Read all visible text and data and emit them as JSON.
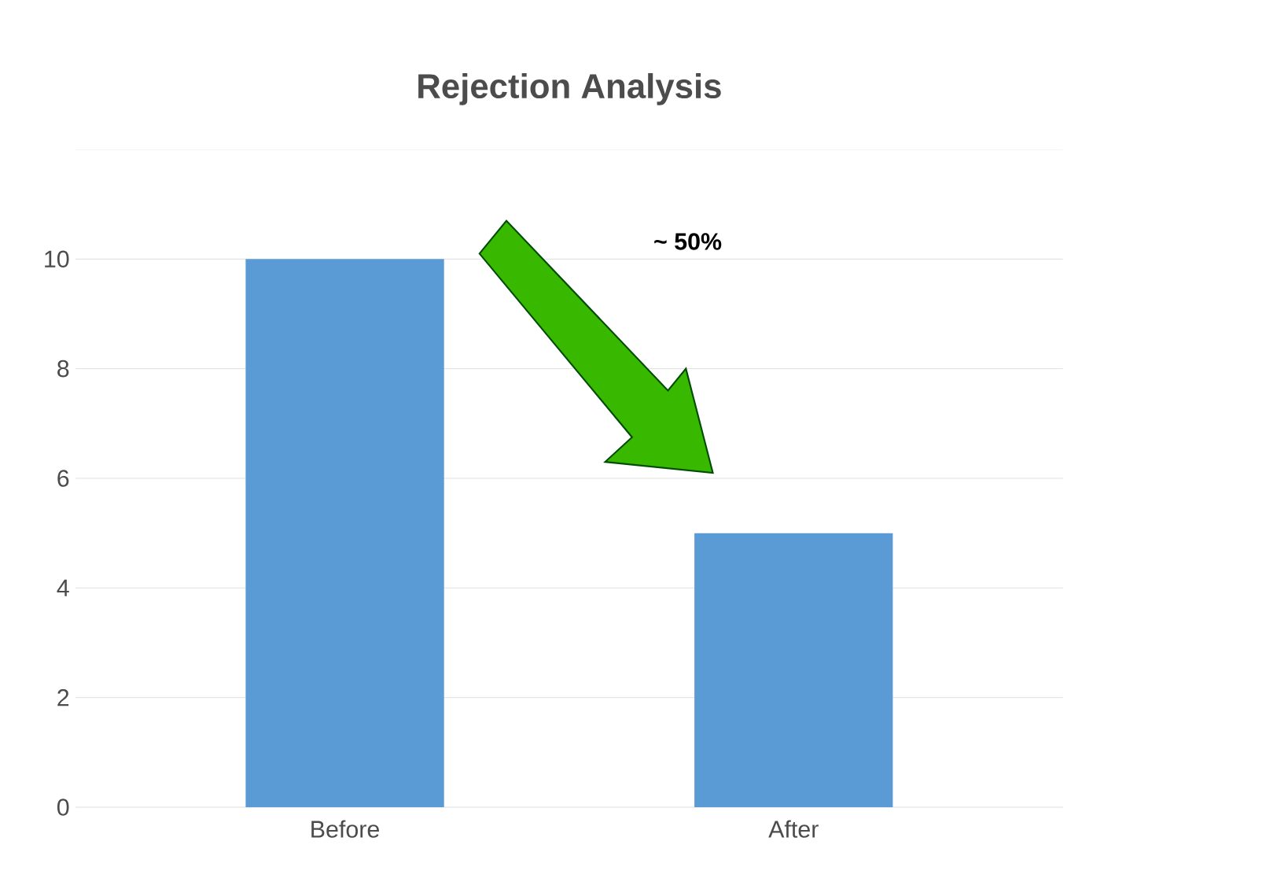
{
  "chart_data": {
    "type": "bar",
    "title": "Rejection Analysis",
    "categories": [
      "Before",
      "After"
    ],
    "values": [
      10,
      5
    ],
    "color": "#5b9bd5",
    "ylim": [
      0,
      12
    ],
    "yticks": [
      0,
      2,
      4,
      6,
      8,
      10
    ],
    "grid": "y",
    "annotations": [
      "~ 50%"
    ]
  }
}
